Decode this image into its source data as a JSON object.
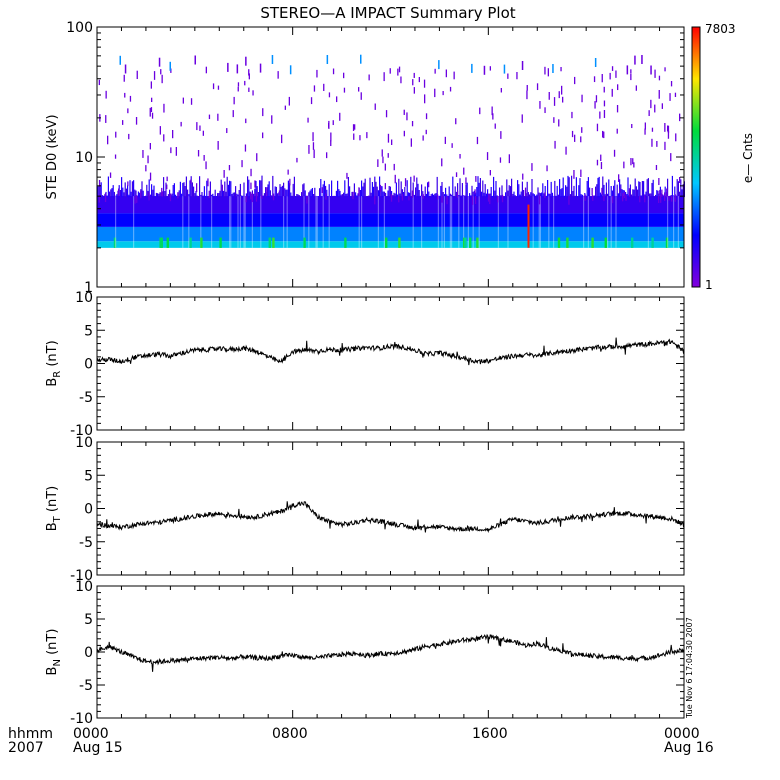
{
  "title": "STEREO—A IMPACT Summary Plot",
  "colorbar": {
    "max_label": "7803",
    "min_label": "1",
    "label": "e— Cnts"
  },
  "footer": {
    "left_top": "hhmm",
    "left_bottom": "2007",
    "ticks": [
      {
        "time": "0000",
        "date": "Aug 15"
      },
      {
        "time": "0800",
        "date": ""
      },
      {
        "time": "1600",
        "date": ""
      },
      {
        "time": "0000",
        "date": "Aug 16"
      }
    ]
  },
  "timestamp": "Tue Nov  6 17:04:30 2007",
  "chart_data": [
    {
      "type": "heatmap",
      "panel": "spectrogram",
      "ylabel": "STE D0 (keV)",
      "yscale": "log",
      "ylim": [
        1,
        100
      ],
      "yticks": [
        "1",
        "10",
        "100"
      ],
      "xlim_hours": [
        0,
        24
      ],
      "color_scale": {
        "min": 1,
        "max": 7803,
        "label": "e— Cnts",
        "colormap": "rainbow"
      },
      "typical_energy_range_keV": [
        2,
        5
      ],
      "peak_time_hours": 17.6
    },
    {
      "type": "line",
      "panel": "BR",
      "ylabel_main": "B",
      "ylabel_sub": "R",
      "ylabel_unit": " (nT)",
      "ylim": [
        -10,
        10
      ],
      "yticks": [
        "-10",
        "-5",
        "0",
        "5",
        "10"
      ],
      "x_hours": [
        0,
        0.5,
        1,
        1.5,
        2,
        2.5,
        3,
        3.5,
        4,
        4.5,
        5,
        5.5,
        6,
        6.5,
        7,
        7.5,
        8,
        8.5,
        9,
        9.5,
        10,
        10.5,
        11,
        11.5,
        12,
        12.5,
        13,
        13.5,
        14,
        14.5,
        15,
        15.5,
        16,
        16.5,
        17,
        17.5,
        18,
        18.5,
        19,
        19.5,
        20,
        20.5,
        21,
        21.5,
        22,
        22.5,
        23,
        23.5,
        24
      ],
      "values": [
        0.5,
        0.6,
        0.3,
        0.9,
        1.2,
        1.4,
        1.1,
        1.6,
        2.0,
        2.1,
        2.2,
        2.1,
        2.3,
        1.9,
        1.0,
        0.2,
        1.8,
        2.0,
        1.9,
        2.1,
        2.0,
        2.2,
        2.4,
        2.3,
        2.6,
        2.5,
        2.0,
        1.4,
        1.6,
        1.2,
        0.8,
        0.3,
        0.4,
        0.8,
        1.1,
        1.3,
        1.2,
        1.5,
        1.8,
        2.0,
        2.2,
        2.4,
        2.5,
        2.6,
        2.8,
        2.9,
        3.1,
        3.3,
        1.8
      ]
    },
    {
      "type": "line",
      "panel": "BT",
      "ylabel_main": "B",
      "ylabel_sub": "T",
      "ylabel_unit": " (nT)",
      "ylim": [
        -10,
        10
      ],
      "yticks": [
        "-10",
        "-5",
        "0",
        "5",
        "10"
      ],
      "x_hours": [
        0,
        0.5,
        1,
        1.5,
        2,
        2.5,
        3,
        3.5,
        4,
        4.5,
        5,
        5.5,
        6,
        6.5,
        7,
        7.5,
        8,
        8.5,
        9,
        9.5,
        10,
        10.5,
        11,
        11.5,
        12,
        12.5,
        13,
        13.5,
        14,
        14.5,
        15,
        15.5,
        16,
        16.5,
        17,
        17.5,
        18,
        18.5,
        19,
        19.5,
        20,
        20.5,
        21,
        21.5,
        22,
        22.5,
        23,
        23.5,
        24
      ],
      "values": [
        -2.3,
        -2.6,
        -2.8,
        -2.5,
        -2.2,
        -2.1,
        -1.8,
        -1.5,
        -1.2,
        -0.9,
        -0.8,
        -1.0,
        -1.2,
        -1.3,
        -0.8,
        -0.5,
        0.5,
        0.8,
        -1.2,
        -2.0,
        -2.4,
        -2.2,
        -1.7,
        -1.9,
        -2.2,
        -2.6,
        -2.9,
        -2.7,
        -2.8,
        -3.0,
        -3.1,
        -3.0,
        -3.2,
        -2.4,
        -1.6,
        -1.9,
        -2.2,
        -1.9,
        -1.5,
        -1.3,
        -1.2,
        -1.0,
        -0.8,
        -0.7,
        -0.9,
        -1.1,
        -1.3,
        -1.6,
        -2.4
      ]
    },
    {
      "type": "line",
      "panel": "BN",
      "ylabel_main": "B",
      "ylabel_sub": "N",
      "ylabel_unit": " (nT)",
      "ylim": [
        -10,
        10
      ],
      "yticks": [
        "-10",
        "-5",
        "0",
        "5",
        "10"
      ],
      "x_hours": [
        0,
        0.5,
        1,
        1.5,
        2,
        2.5,
        3,
        3.5,
        4,
        4.5,
        5,
        5.5,
        6,
        6.5,
        7,
        7.5,
        8,
        8.5,
        9,
        9.5,
        10,
        10.5,
        11,
        11.5,
        12,
        12.5,
        13,
        13.5,
        14,
        14.5,
        15,
        15.5,
        16,
        16.5,
        17,
        17.5,
        18,
        18.5,
        19,
        19.5,
        20,
        20.5,
        21,
        21.5,
        22,
        22.5,
        23,
        23.5,
        24
      ],
      "values": [
        0.2,
        0.8,
        0.0,
        -0.8,
        -1.4,
        -1.5,
        -1.3,
        -1.2,
        -1.0,
        -0.9,
        -0.8,
        -1.0,
        -0.7,
        -0.9,
        -1.0,
        -0.6,
        -0.5,
        -0.8,
        -0.9,
        -0.6,
        -0.4,
        -0.2,
        -0.5,
        -0.3,
        -0.2,
        0.0,
        0.4,
        0.9,
        1.2,
        1.5,
        1.8,
        2.0,
        2.3,
        1.9,
        1.6,
        1.0,
        1.3,
        0.6,
        0.2,
        -0.3,
        -0.5,
        -0.7,
        -0.8,
        -0.9,
        -1.0,
        -0.9,
        -0.5,
        0.0,
        0.3
      ]
    }
  ]
}
